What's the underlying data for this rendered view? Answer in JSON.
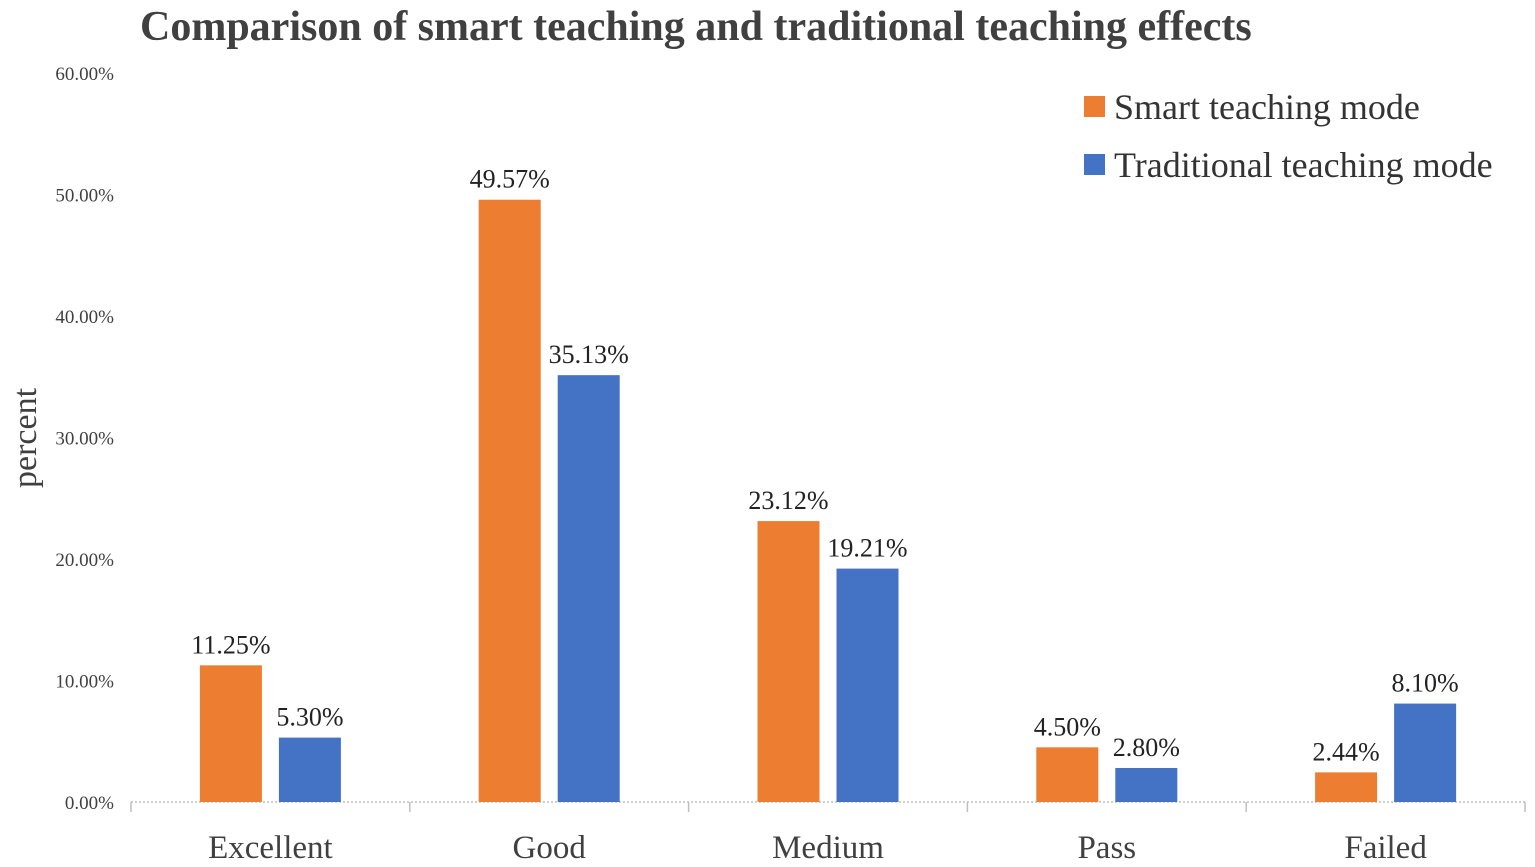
{
  "chart_data": {
    "type": "bar",
    "title": "Comparison of smart teaching and traditional teaching effects",
    "xlabel": "",
    "ylabel": "percent",
    "categories": [
      "Excellent",
      "Good",
      "Medium",
      "Pass",
      "Failed"
    ],
    "ylim": [
      0,
      60
    ],
    "yticks": [
      0,
      10,
      20,
      30,
      40,
      50,
      60
    ],
    "ytick_labels": [
      "0.00%",
      "10.00%",
      "20.00%",
      "30.00%",
      "40.00%",
      "50.00%",
      "60.00%"
    ],
    "grid": false,
    "legend_position": "top-right",
    "series": [
      {
        "name": "Smart teaching mode",
        "color": "#ED7D31",
        "values": [
          11.25,
          49.57,
          23.12,
          4.5,
          2.44
        ],
        "labels": [
          "11.25%",
          "49.57%",
          "23.12%",
          "4.50%",
          "2.44%"
        ]
      },
      {
        "name": "Traditional teaching mode",
        "color": "#4472C4",
        "values": [
          5.3,
          35.13,
          19.21,
          2.8,
          8.1
        ],
        "labels": [
          "5.30%",
          "35.13%",
          "19.21%",
          "2.80%",
          "8.10%"
        ]
      }
    ]
  }
}
